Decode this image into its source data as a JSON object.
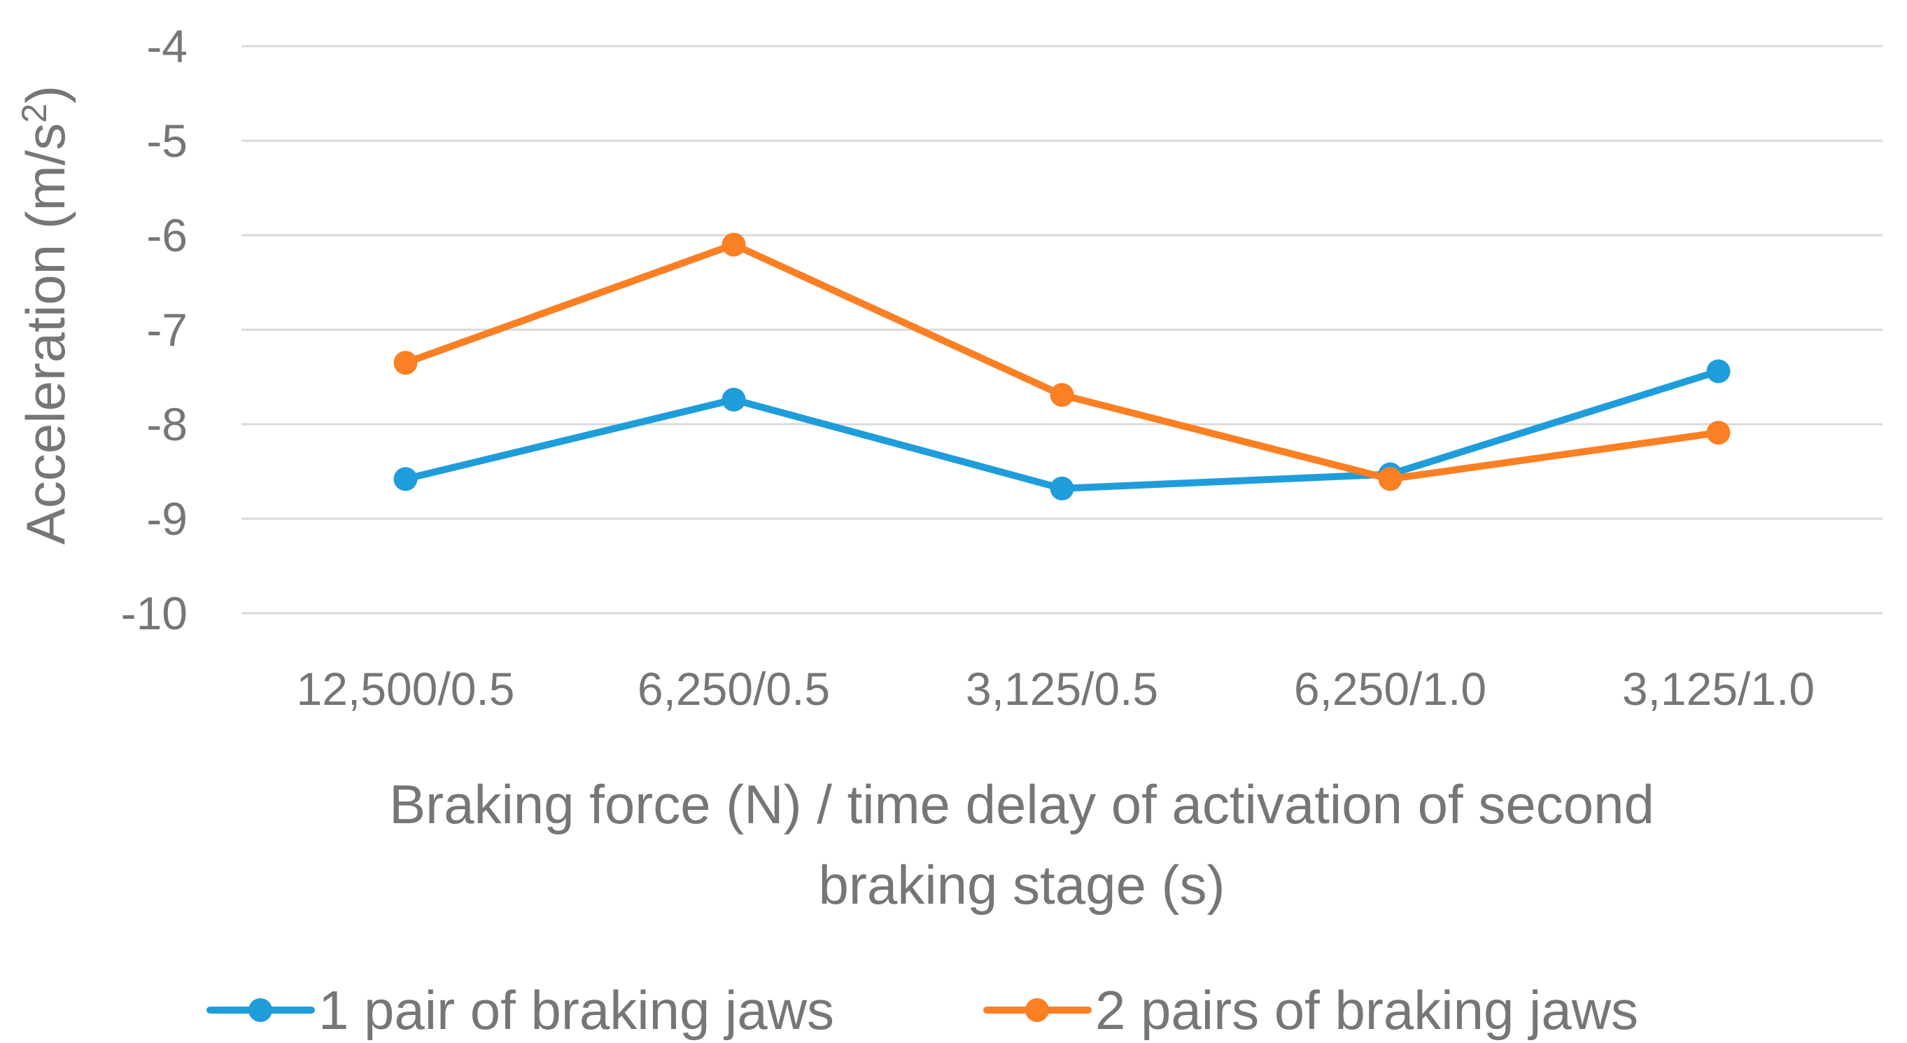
{
  "chart_data": {
    "type": "line",
    "title": "",
    "xlabel_lines": [
      "Braking force (N) / time delay of activation of second",
      "braking stage (s)"
    ],
    "ylabel": "Acceleration (m/s",
    "ylabel_sup": "2",
    "ylabel_end": ")",
    "categories": [
      "12,500/0.5",
      "6,250/0.5",
      "3,125/0.5",
      "6,250/1.0",
      "3,125/1.0"
    ],
    "ylim": [
      -10,
      -4
    ],
    "yticks": [
      -4,
      -5,
      -6,
      -7,
      -8,
      -9,
      -10
    ],
    "ytick_labels": [
      "-4",
      "-5",
      "-6",
      "-7",
      "-8",
      "-9",
      "-10"
    ],
    "grid": true,
    "legend_position": "bottom",
    "series": [
      {
        "name": "1 pair of braking jaws",
        "color": "#1f9ddb",
        "values": [
          -8.58,
          -7.74,
          -8.68,
          -8.53,
          -7.44
        ]
      },
      {
        "name": "2 pairs of braking jaws",
        "color": "#fb7f23",
        "values": [
          -7.35,
          -6.1,
          -7.69,
          -8.58,
          -8.09
        ]
      }
    ]
  }
}
